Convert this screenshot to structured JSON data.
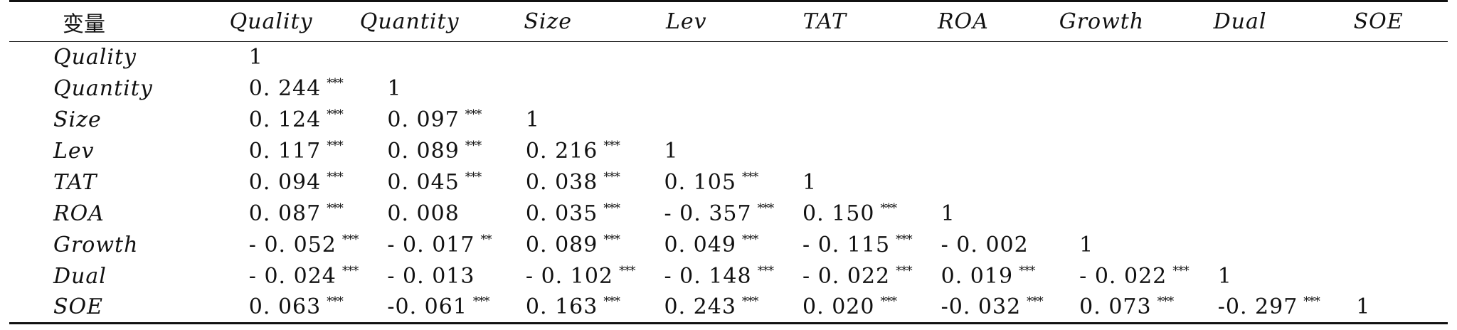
{
  "table": {
    "corner_label": "变量",
    "columns": [
      "Quality",
      "Quantity",
      "Size",
      "Lev",
      "TAT",
      "ROA",
      "Growth",
      "Dual",
      "SOE"
    ],
    "rows": [
      {
        "label": "Quality",
        "cells": [
          {
            "value": "1",
            "sig": ""
          }
        ]
      },
      {
        "label": "Quantity",
        "cells": [
          {
            "value": "0. 244",
            "sig": "***"
          },
          {
            "value": "1",
            "sig": ""
          }
        ]
      },
      {
        "label": "Size",
        "cells": [
          {
            "value": "0. 124",
            "sig": "***"
          },
          {
            "value": "0. 097",
            "sig": "***"
          },
          {
            "value": "1",
            "sig": ""
          }
        ]
      },
      {
        "label": "Lev",
        "cells": [
          {
            "value": "0. 117",
            "sig": "***"
          },
          {
            "value": "0. 089",
            "sig": "***"
          },
          {
            "value": "0. 216",
            "sig": "***"
          },
          {
            "value": "1",
            "sig": ""
          }
        ]
      },
      {
        "label": "TAT",
        "cells": [
          {
            "value": "0. 094",
            "sig": "***"
          },
          {
            "value": "0. 045",
            "sig": "***"
          },
          {
            "value": "0. 038",
            "sig": "***"
          },
          {
            "value": "0. 105",
            "sig": "***"
          },
          {
            "value": "1",
            "sig": ""
          }
        ]
      },
      {
        "label": "ROA",
        "cells": [
          {
            "value": "0. 087",
            "sig": "***"
          },
          {
            "value": "0. 008",
            "sig": ""
          },
          {
            "value": "0. 035",
            "sig": "***"
          },
          {
            "value": "- 0. 357",
            "sig": "***"
          },
          {
            "value": "0. 150",
            "sig": "***"
          },
          {
            "value": "1",
            "sig": ""
          }
        ]
      },
      {
        "label": "Growth",
        "cells": [
          {
            "value": "- 0. 052",
            "sig": "***"
          },
          {
            "value": "- 0. 017",
            "sig": "**"
          },
          {
            "value": "0. 089",
            "sig": "***"
          },
          {
            "value": "0. 049",
            "sig": "***"
          },
          {
            "value": "- 0. 115",
            "sig": "***"
          },
          {
            "value": "- 0. 002",
            "sig": ""
          },
          {
            "value": "1",
            "sig": ""
          }
        ]
      },
      {
        "label": "Dual",
        "cells": [
          {
            "value": "- 0. 024",
            "sig": "***"
          },
          {
            "value": "- 0. 013",
            "sig": ""
          },
          {
            "value": "- 0. 102",
            "sig": "***"
          },
          {
            "value": "- 0. 148",
            "sig": "***"
          },
          {
            "value": "- 0. 022",
            "sig": "***"
          },
          {
            "value": "0. 019",
            "sig": "***"
          },
          {
            "value": "- 0. 022",
            "sig": "***"
          },
          {
            "value": "1",
            "sig": ""
          }
        ]
      },
      {
        "label": "SOE",
        "cells": [
          {
            "value": "0. 063",
            "sig": "***"
          },
          {
            "value": "-0. 061",
            "sig": "***"
          },
          {
            "value": "0. 163",
            "sig": "***"
          },
          {
            "value": "0. 243",
            "sig": "***"
          },
          {
            "value": "0. 020",
            "sig": "***"
          },
          {
            "value": "-0. 032",
            "sig": "***"
          },
          {
            "value": "0. 073",
            "sig": "***"
          },
          {
            "value": "-0. 297",
            "sig": "***"
          },
          {
            "value": "1",
            "sig": ""
          }
        ]
      }
    ]
  }
}
